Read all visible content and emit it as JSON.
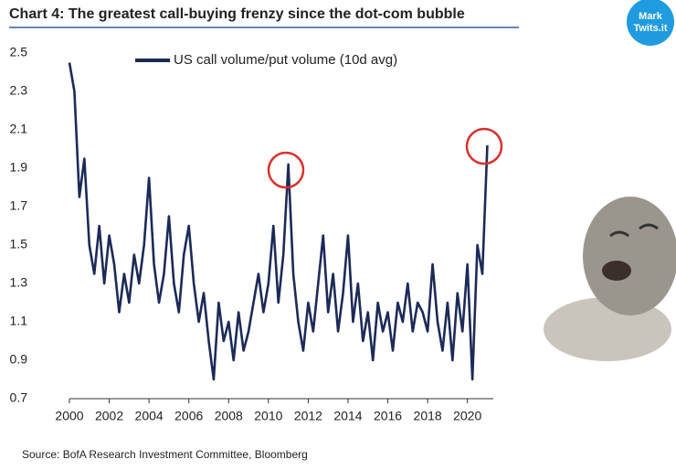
{
  "chart_data": {
    "type": "line",
    "title": "Chart 4: The greatest call-buying frenzy since the dot-com bubble",
    "source": "Source: BofA Research Investment Committee, Bloomberg",
    "x": [
      2000.0,
      2000.25,
      2000.5,
      2000.75,
      2001.0,
      2001.25,
      2001.5,
      2001.75,
      2002.0,
      2002.25,
      2002.5,
      2002.75,
      2003.0,
      2003.25,
      2003.5,
      2003.75,
      2004.0,
      2004.25,
      2004.5,
      2004.75,
      2005.0,
      2005.25,
      2005.5,
      2005.75,
      2006.0,
      2006.25,
      2006.5,
      2006.75,
      2007.0,
      2007.25,
      2007.5,
      2007.75,
      2008.0,
      2008.25,
      2008.5,
      2008.75,
      2009.0,
      2009.25,
      2009.5,
      2009.75,
      2010.0,
      2010.25,
      2010.5,
      2010.75,
      2011.0,
      2011.25,
      2011.5,
      2011.75,
      2012.0,
      2012.25,
      2012.5,
      2012.75,
      2013.0,
      2013.25,
      2013.5,
      2013.75,
      2014.0,
      2014.25,
      2014.5,
      2014.75,
      2015.0,
      2015.25,
      2015.5,
      2015.75,
      2016.0,
      2016.25,
      2016.5,
      2016.75,
      2017.0,
      2017.25,
      2017.5,
      2017.75,
      2018.0,
      2018.25,
      2018.5,
      2018.75,
      2019.0,
      2019.25,
      2019.5,
      2019.75,
      2020.0,
      2020.25,
      2020.5,
      2020.75,
      2021.0
    ],
    "series": [
      {
        "name": "US call volume/put volume (10d avg)",
        "color": "#1c2a57",
        "values": [
          2.45,
          2.3,
          1.75,
          1.95,
          1.5,
          1.35,
          1.6,
          1.3,
          1.55,
          1.4,
          1.15,
          1.35,
          1.2,
          1.45,
          1.3,
          1.5,
          1.85,
          1.4,
          1.2,
          1.35,
          1.65,
          1.3,
          1.15,
          1.45,
          1.6,
          1.3,
          1.1,
          1.25,
          1.0,
          0.8,
          1.2,
          1.0,
          1.1,
          0.9,
          1.15,
          0.95,
          1.05,
          1.2,
          1.35,
          1.15,
          1.3,
          1.6,
          1.2,
          1.45,
          1.92,
          1.35,
          1.1,
          0.95,
          1.2,
          1.05,
          1.3,
          1.55,
          1.15,
          1.35,
          1.05,
          1.25,
          1.55,
          1.1,
          1.3,
          1.0,
          1.15,
          0.9,
          1.2,
          1.05,
          1.15,
          0.95,
          1.2,
          1.1,
          1.3,
          1.05,
          1.2,
          1.15,
          1.05,
          1.4,
          1.1,
          0.95,
          1.2,
          0.9,
          1.25,
          1.05,
          1.4,
          0.8,
          1.5,
          1.35,
          2.02
        ]
      }
    ],
    "xlim": [
      2000,
      2021.3
    ],
    "xticks": [
      2000,
      2002,
      2004,
      2006,
      2008,
      2010,
      2012,
      2014,
      2016,
      2018,
      2020
    ],
    "ylim": [
      0.7,
      2.5
    ],
    "yticks": [
      0.7,
      0.9,
      1.1,
      1.3,
      1.5,
      1.7,
      1.9,
      2.1,
      2.3,
      2.5
    ],
    "legend": "top"
  },
  "logo": [
    "Mark",
    "Twits.it"
  ]
}
